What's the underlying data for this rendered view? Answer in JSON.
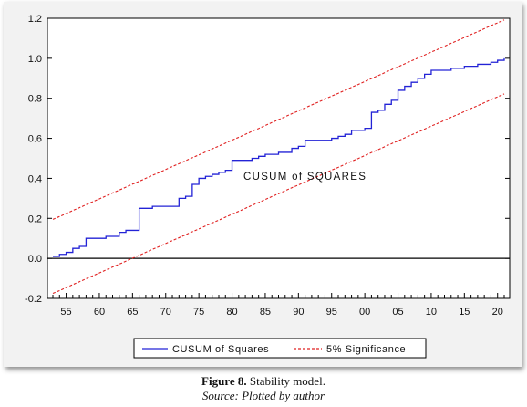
{
  "chart_data": {
    "type": "line",
    "x": [
      1953,
      1954,
      1955,
      1956,
      1957,
      1958,
      1959,
      1960,
      1961,
      1962,
      1963,
      1964,
      1965,
      1966,
      1967,
      1968,
      1969,
      1970,
      1971,
      1972,
      1973,
      1974,
      1975,
      1976,
      1977,
      1978,
      1979,
      1980,
      1981,
      1982,
      1983,
      1984,
      1985,
      1986,
      1987,
      1988,
      1989,
      1990,
      1991,
      1992,
      1993,
      1994,
      1995,
      1996,
      1997,
      1998,
      1999,
      2000,
      2001,
      2002,
      2003,
      2004,
      2005,
      2006,
      2007,
      2008,
      2009,
      2010,
      2011,
      2012,
      2013,
      2014,
      2015,
      2016,
      2017,
      2018,
      2019,
      2020,
      2021
    ],
    "series": [
      {
        "name": "CUSUM of Squares",
        "color": "#2323d6",
        "style": "solid",
        "values": [
          0.01,
          0.02,
          0.03,
          0.05,
          0.06,
          0.1,
          0.1,
          0.1,
          0.11,
          0.11,
          0.13,
          0.14,
          0.14,
          0.25,
          0.25,
          0.26,
          0.26,
          0.26,
          0.26,
          0.3,
          0.31,
          0.37,
          0.4,
          0.41,
          0.42,
          0.43,
          0.44,
          0.49,
          0.49,
          0.49,
          0.5,
          0.51,
          0.52,
          0.52,
          0.53,
          0.53,
          0.55,
          0.56,
          0.59,
          0.59,
          0.59,
          0.59,
          0.6,
          0.61,
          0.62,
          0.64,
          0.64,
          0.65,
          0.73,
          0.74,
          0.77,
          0.79,
          0.84,
          0.86,
          0.88,
          0.9,
          0.92,
          0.94,
          0.94,
          0.94,
          0.95,
          0.95,
          0.96,
          0.96,
          0.97,
          0.97,
          0.98,
          0.99,
          1.0
        ]
      },
      {
        "name": "5% Significance",
        "color": "#e02020",
        "style": "dashed",
        "values": [
          0.195,
          0.209,
          0.224,
          0.239,
          0.253,
          0.268,
          0.283,
          0.297,
          0.312,
          0.327,
          0.341,
          0.356,
          0.371,
          0.385,
          0.4,
          0.415,
          0.429,
          0.444,
          0.459,
          0.473,
          0.488,
          0.503,
          0.517,
          0.532,
          0.547,
          0.561,
          0.576,
          0.591,
          0.605,
          0.62,
          0.635,
          0.649,
          0.664,
          0.679,
          0.693,
          0.708,
          0.723,
          0.737,
          0.752,
          0.767,
          0.781,
          0.796,
          0.811,
          0.825,
          0.84,
          0.855,
          0.869,
          0.884,
          0.899,
          0.913,
          0.928,
          0.943,
          0.957,
          0.972,
          0.987,
          1.001,
          1.016,
          1.031,
          1.045,
          1.06,
          1.075,
          1.089,
          1.104,
          1.119,
          1.133,
          1.148,
          1.163,
          1.177,
          1.192
        ]
      },
      {
        "name": "5% Significance",
        "color": "#e02020",
        "style": "dashed",
        "values": [
          -0.175,
          -0.161,
          -0.146,
          -0.131,
          -0.117,
          -0.102,
          -0.087,
          -0.073,
          -0.058,
          -0.043,
          -0.029,
          -0.014,
          0.001,
          0.015,
          0.03,
          0.045,
          0.059,
          0.074,
          0.089,
          0.103,
          0.118,
          0.133,
          0.147,
          0.162,
          0.177,
          0.191,
          0.206,
          0.221,
          0.235,
          0.25,
          0.265,
          0.279,
          0.294,
          0.309,
          0.323,
          0.338,
          0.353,
          0.367,
          0.382,
          0.397,
          0.411,
          0.426,
          0.441,
          0.455,
          0.47,
          0.485,
          0.499,
          0.514,
          0.529,
          0.543,
          0.558,
          0.573,
          0.587,
          0.602,
          0.617,
          0.631,
          0.646,
          0.661,
          0.675,
          0.69,
          0.705,
          0.719,
          0.734,
          0.749,
          0.763,
          0.778,
          0.793,
          0.807,
          0.822
        ]
      }
    ],
    "xlim": [
      1953,
      2021
    ],
    "ylim": [
      -0.2,
      1.2
    ],
    "yticks": [
      "-0.2",
      "0.0",
      "0.2",
      "0.4",
      "0.6",
      "0.8",
      "1.0",
      "1.2"
    ],
    "ytick_values": [
      -0.2,
      0.0,
      0.2,
      0.4,
      0.6,
      0.8,
      1.0,
      1.2
    ],
    "xticks": [
      "55",
      "60",
      "65",
      "70",
      "75",
      "80",
      "85",
      "90",
      "95",
      "00",
      "05",
      "10",
      "15",
      "20"
    ],
    "xtick_values": [
      1955,
      1960,
      1965,
      1970,
      1975,
      1980,
      1985,
      1990,
      1995,
      2000,
      2005,
      2010,
      2015,
      2020
    ],
    "annotation": "CUSUM of SQUARES",
    "zero_line": 0.0,
    "grid": false,
    "legend": {
      "placement": "bottom",
      "entries": [
        {
          "label": "CUSUM of Squares",
          "color": "#2323d6",
          "style": "solid"
        },
        {
          "label": "5% Significance",
          "color": "#e02020",
          "style": "dashed"
        }
      ]
    }
  },
  "caption": {
    "figure_label": "Figure 8.",
    "figure_text": " Stability model.",
    "source": "Source: Plotted by author"
  }
}
